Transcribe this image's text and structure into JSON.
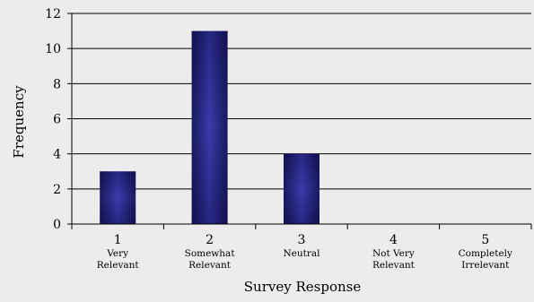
{
  "chart_data": {
    "type": "bar",
    "title": "",
    "xlabel": "Survey Response",
    "ylabel": "Frequency",
    "ylim": [
      0,
      12
    ],
    "yticks": [
      0,
      2,
      4,
      6,
      8,
      10,
      12
    ],
    "grid": true,
    "legend": "none",
    "categories": [
      {
        "value": "1",
        "line1": "Very",
        "line2": "Relevant"
      },
      {
        "value": "2",
        "line1": "Somewhat",
        "line2": "Relevant"
      },
      {
        "value": "3",
        "line1": "Neutral",
        "line2": ""
      },
      {
        "value": "4",
        "line1": "Not Very",
        "line2": "Relevant"
      },
      {
        "value": "5",
        "line1": "Completely",
        "line2": "Irrelevant"
      }
    ],
    "values": [
      3,
      11,
      4,
      0,
      0
    ],
    "colors": {
      "bar_edge": "#1a1a5e",
      "bar_center": "#3c3cae",
      "grid": "#000000",
      "background": "#ececec"
    }
  }
}
